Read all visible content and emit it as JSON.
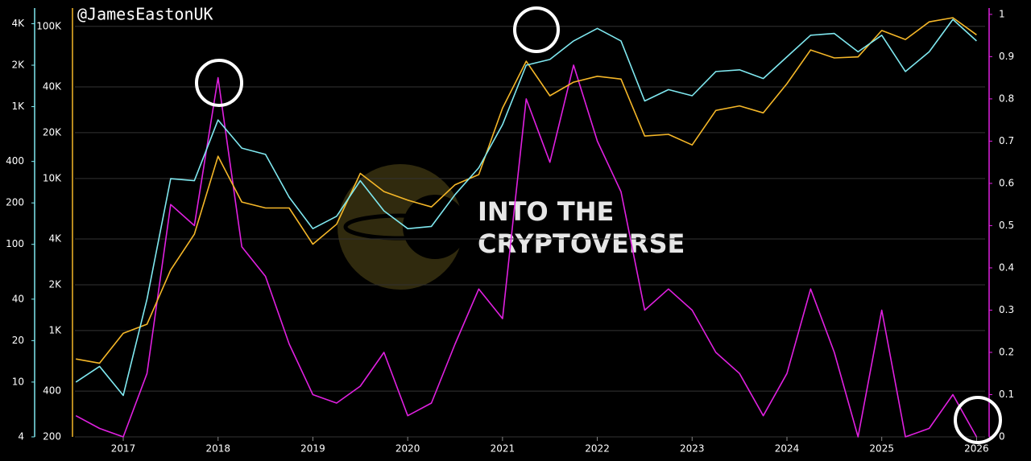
{
  "chart_data": {
    "type": "line",
    "annotations": [
      "@JamesEastonUK",
      "INTO THE",
      "CRYPTOVERSE"
    ],
    "x": [
      2016.5,
      2016.75,
      2017.0,
      2017.25,
      2017.5,
      2017.75,
      2018.0,
      2018.25,
      2018.5,
      2018.75,
      2019.0,
      2019.25,
      2019.5,
      2019.75,
      2020.0,
      2020.25,
      2020.5,
      2020.75,
      2021.0,
      2021.25,
      2021.5,
      2021.75,
      2022.0,
      2022.25,
      2022.5,
      2022.75,
      2023.0,
      2023.25,
      2023.5,
      2023.75,
      2024.0,
      2024.25,
      2024.5,
      2024.75,
      2025.0,
      2025.25,
      2025.5,
      2025.75,
      2026.0
    ],
    "xlim": [
      2016.49,
      2026.09
    ],
    "xticks": [
      2017,
      2018,
      2019,
      2020,
      2021,
      2022,
      2023,
      2024,
      2025,
      2026
    ],
    "ylim": [
      200,
      132000
    ],
    "ylog": true,
    "grid": true,
    "yticks": [
      200,
      400,
      {
        "value": 1000,
        "label": "1K"
      },
      {
        "value": 2000,
        "label": "2K"
      },
      {
        "value": 4000,
        "label": "4K"
      },
      {
        "value": 10000,
        "label": "10K"
      },
      {
        "value": 20000,
        "label": "20K"
      },
      {
        "value": 40000,
        "label": "40K"
      },
      {
        "value": 100000,
        "label": "100K"
      }
    ],
    "y2lim": [
      0,
      1.015
    ],
    "y2ticks": [
      0,
      0.1,
      0.2,
      0.3,
      0.4,
      0.5,
      0.6,
      0.7,
      0.8,
      0.9,
      1
    ],
    "y3lim": [
      4,
      5200
    ],
    "y3log": true,
    "y3ticks": [
      4,
      10,
      20,
      40,
      100,
      200,
      400,
      {
        "value": 1000,
        "label": "1K"
      },
      {
        "value": 2000,
        "label": "2K"
      },
      {
        "value": 4000,
        "label": "4K"
      }
    ],
    "series": [
      {
        "color": "#f5b728",
        "axis": "y",
        "values": [
          650,
          610,
          960,
          1100,
          2500,
          4300,
          14000,
          7000,
          6400,
          6400,
          3700,
          5000,
          10800,
          8200,
          7200,
          6500,
          9100,
          10600,
          29000,
          59000,
          35000,
          43000,
          47000,
          45000,
          19000,
          19500,
          16600,
          28000,
          30000,
          27000,
          42000,
          70000,
          62000,
          63000,
          94000,
          82000,
          107000,
          114000,
          88000
        ]
      },
      {
        "color": "#7fe8f0",
        "axis": "y3",
        "values": [
          10,
          13,
          8,
          40,
          300,
          290,
          800,
          500,
          450,
          220,
          130,
          160,
          290,
          175,
          130,
          135,
          230,
          360,
          740,
          2000,
          2200,
          3000,
          3700,
          3000,
          1100,
          1330,
          1200,
          1800,
          1850,
          1600,
          2300,
          3300,
          3400,
          2500,
          3300,
          1800,
          2500,
          4300,
          3000
        ]
      },
      {
        "color": "#e020e0",
        "axis": "y2",
        "values": [
          0.05,
          0.02,
          0.0,
          0.15,
          0.55,
          0.5,
          0.85,
          0.45,
          0.38,
          0.22,
          0.1,
          0.08,
          0.12,
          0.2,
          0.05,
          0.08,
          0.22,
          0.35,
          0.28,
          0.8,
          0.65,
          0.88,
          0.7,
          0.58,
          0.3,
          0.35,
          0.3,
          0.2,
          0.15,
          0.05,
          0.15,
          0.35,
          0.2,
          0.0,
          0.3,
          0.0,
          0.02,
          0.1,
          0.0
        ]
      }
    ]
  }
}
